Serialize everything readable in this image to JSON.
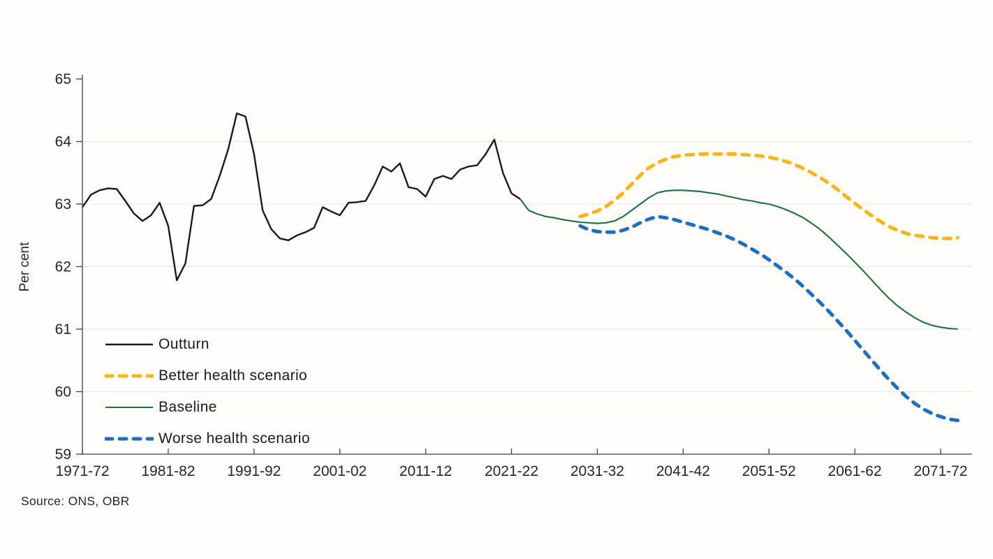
{
  "page": {
    "background_color": "#fffefa",
    "text_color": "#262626",
    "axis_color": "#404040",
    "gridline_color": "#e0e6ef"
  },
  "source_note": "Source: ONS, OBR",
  "chart_data": {
    "type": "line",
    "title": "",
    "xlabel": "",
    "ylabel": "Per cent",
    "x_unit": "fiscal year, annual points from 1971-72",
    "ylim": [
      59,
      65
    ],
    "grid": "horizontal only, light",
    "legend_position": "inside lower-left",
    "y_ticks": [
      59,
      60,
      61,
      62,
      63,
      64,
      65
    ],
    "x_ticks": [
      {
        "label": "1971-72",
        "index": 0
      },
      {
        "label": "1981-82",
        "index": 10
      },
      {
        "label": "1991-92",
        "index": 20
      },
      {
        "label": "2001-02",
        "index": 30
      },
      {
        "label": "2011-12",
        "index": 40
      },
      {
        "label": "2021-22",
        "index": 50
      },
      {
        "label": "2031-32",
        "index": 60
      },
      {
        "label": "2041-42",
        "index": 70
      },
      {
        "label": "2051-52",
        "index": 80
      },
      {
        "label": "2061-62",
        "index": 90
      },
      {
        "label": "2071-72",
        "index": 100
      }
    ],
    "series": [
      {
        "name": "Outturn",
        "color": "#1a1a1a",
        "style": "solid",
        "width": 2.4,
        "start_year": "1971-72",
        "end_year": "2022-23",
        "start_index": 0,
        "values": [
          62.95,
          63.15,
          63.22,
          63.25,
          63.24,
          63.05,
          62.85,
          62.73,
          62.82,
          63.02,
          62.65,
          61.78,
          62.05,
          62.97,
          62.98,
          63.08,
          63.45,
          63.88,
          64.45,
          64.4,
          63.8,
          62.9,
          62.6,
          62.45,
          62.42,
          62.5,
          62.55,
          62.62,
          62.95,
          62.88,
          62.82,
          63.02,
          63.03,
          63.05,
          63.3,
          63.6,
          63.52,
          63.65,
          63.27,
          63.24,
          63.12,
          63.4,
          63.45,
          63.4,
          63.55,
          63.6,
          63.62,
          63.8,
          64.03,
          63.5,
          63.17,
          63.08
        ]
      },
      {
        "name": "Better health scenario",
        "color": "#FBB416",
        "style": "dashed",
        "width": 5,
        "start_year": "2029-30",
        "end_year": "2073-74",
        "start_index": 58,
        "values": [
          62.8,
          62.84,
          62.89,
          62.96,
          63.06,
          63.18,
          63.32,
          63.46,
          63.58,
          63.66,
          63.72,
          63.76,
          63.78,
          63.79,
          63.8,
          63.8,
          63.8,
          63.8,
          63.8,
          63.79,
          63.78,
          63.77,
          63.75,
          63.72,
          63.68,
          63.63,
          63.57,
          63.5,
          63.42,
          63.33,
          63.23,
          63.12,
          63.01,
          62.91,
          62.81,
          62.72,
          62.64,
          62.58,
          62.53,
          62.5,
          62.48,
          62.46,
          62.45,
          62.45,
          62.46
        ]
      },
      {
        "name": "Baseline",
        "color": "#17704C",
        "style": "solid",
        "width": 2.1,
        "start_year": "2022-23",
        "end_year": "2073-74",
        "start_index": 51,
        "values": [
          63.08,
          62.9,
          62.84,
          62.8,
          62.78,
          62.75,
          62.73,
          62.71,
          62.7,
          62.69,
          62.7,
          62.73,
          62.8,
          62.9,
          63.0,
          63.1,
          63.18,
          63.21,
          63.22,
          63.22,
          63.21,
          63.2,
          63.18,
          63.16,
          63.13,
          63.1,
          63.07,
          63.05,
          63.02,
          63.0,
          62.96,
          62.91,
          62.85,
          62.78,
          62.69,
          62.59,
          62.47,
          62.34,
          62.21,
          62.07,
          61.93,
          61.78,
          61.63,
          61.49,
          61.37,
          61.27,
          61.18,
          61.11,
          61.06,
          61.03,
          61.01,
          61.0
        ]
      },
      {
        "name": "Worse health scenario",
        "color": "#1B6FC0",
        "style": "dashed",
        "width": 5,
        "start_year": "2029-30",
        "end_year": "2073-74",
        "start_index": 58,
        "values": [
          62.65,
          62.59,
          62.56,
          62.55,
          62.55,
          62.58,
          62.63,
          62.7,
          62.76,
          62.8,
          62.78,
          62.75,
          62.71,
          62.67,
          62.63,
          62.59,
          62.54,
          62.49,
          62.43,
          62.36,
          62.28,
          62.2,
          62.11,
          62.01,
          61.91,
          61.8,
          61.68,
          61.55,
          61.42,
          61.28,
          61.13,
          60.98,
          60.82,
          60.66,
          60.5,
          60.34,
          60.19,
          60.05,
          59.92,
          59.81,
          59.72,
          59.65,
          59.6,
          59.56,
          59.54
        ]
      }
    ]
  }
}
